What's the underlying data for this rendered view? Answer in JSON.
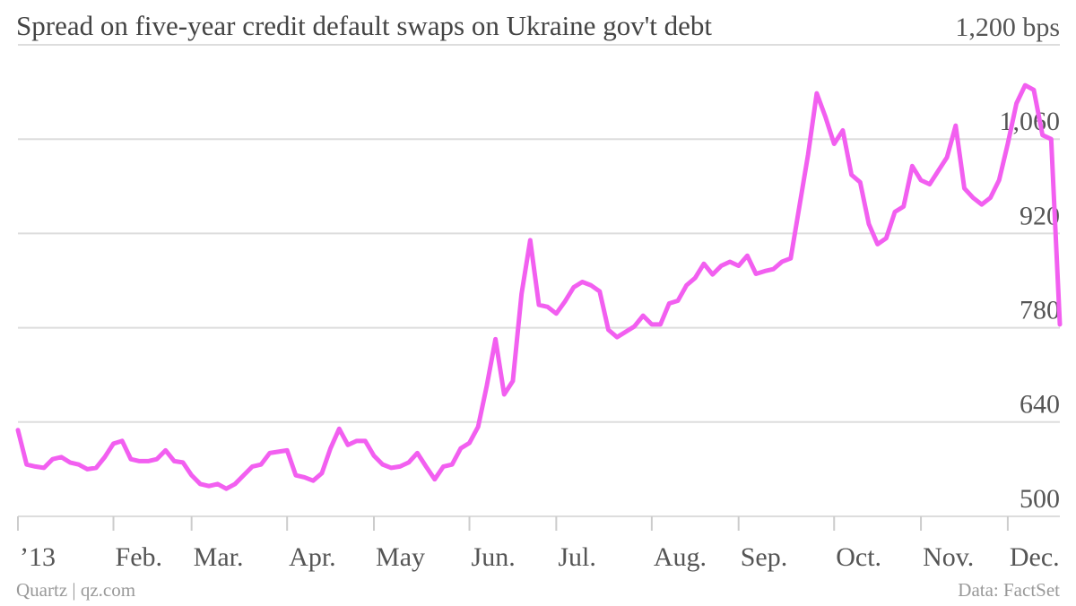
{
  "chart_data": {
    "type": "line",
    "title": "Spread on five-year credit default swaps on Ukraine gov't debt",
    "source": "Data: FactSet",
    "credit": "Quartz | qz.com",
    "color": "#f25ff0",
    "categories": [
      "’13",
      null,
      null,
      null,
      null,
      null,
      null,
      null,
      null,
      null,
      null,
      "Feb.",
      null,
      null,
      null,
      null,
      null,
      null,
      null,
      null,
      "Mar.",
      null,
      null,
      null,
      null,
      null,
      null,
      null,
      null,
      null,
      null,
      "Apr.",
      null,
      null,
      null,
      null,
      null,
      null,
      null,
      null,
      null,
      "May",
      null,
      null,
      null,
      null,
      null,
      null,
      null,
      null,
      null,
      null,
      "Jun.",
      null,
      null,
      null,
      null,
      null,
      null,
      null,
      null,
      null,
      "Jul.",
      null,
      null,
      null,
      null,
      null,
      null,
      null,
      null,
      null,
      null,
      "Aug.",
      null,
      null,
      null,
      null,
      null,
      null,
      null,
      null,
      null,
      "Sep.",
      null,
      null,
      null,
      null,
      null,
      null,
      null,
      null,
      null,
      null,
      "Oct.",
      null,
      null,
      null,
      null,
      null,
      null,
      null,
      null,
      null,
      "Nov.",
      null,
      null,
      null,
      null,
      null,
      null,
      null,
      null,
      null,
      "Dec.",
      null,
      null,
      null,
      null,
      null,
      null
    ],
    "values": [
      628,
      577,
      574,
      572,
      585,
      588,
      580,
      577,
      570,
      572,
      588,
      608,
      612,
      585,
      582,
      582,
      585,
      598,
      582,
      580,
      561,
      548,
      545,
      548,
      541,
      548,
      561,
      574,
      577,
      594,
      596,
      598,
      561,
      558,
      553,
      564,
      601,
      630,
      606,
      612,
      612,
      590,
      577,
      572,
      574,
      580,
      594,
      574,
      555,
      574,
      577,
      601,
      609,
      633,
      694,
      763,
      681,
      701,
      830,
      910,
      814,
      811,
      801,
      819,
      840,
      848,
      843,
      834,
      777,
      766,
      774,
      782,
      798,
      785,
      785,
      816,
      820,
      843,
      854,
      875,
      859,
      872,
      878,
      872,
      887,
      860,
      864,
      867,
      878,
      883,
      960,
      1037,
      1128,
      1093,
      1053,
      1073,
      1007,
      996,
      934,
      904,
      913,
      952,
      960,
      1020,
      999,
      993,
      1013,
      1033,
      1080,
      987,
      973,
      963,
      973,
      999,
      1053,
      1113,
      1140,
      1133,
      1066,
      1060,
      785
    ],
    "ylim": [
      500,
      1200
    ],
    "yticks": [
      500,
      640,
      780,
      920,
      {
        "value": 1060,
        "label": "1,060"
      },
      {
        "value": 1200,
        "label": "1,200 bps"
      }
    ],
    "grid": true
  }
}
